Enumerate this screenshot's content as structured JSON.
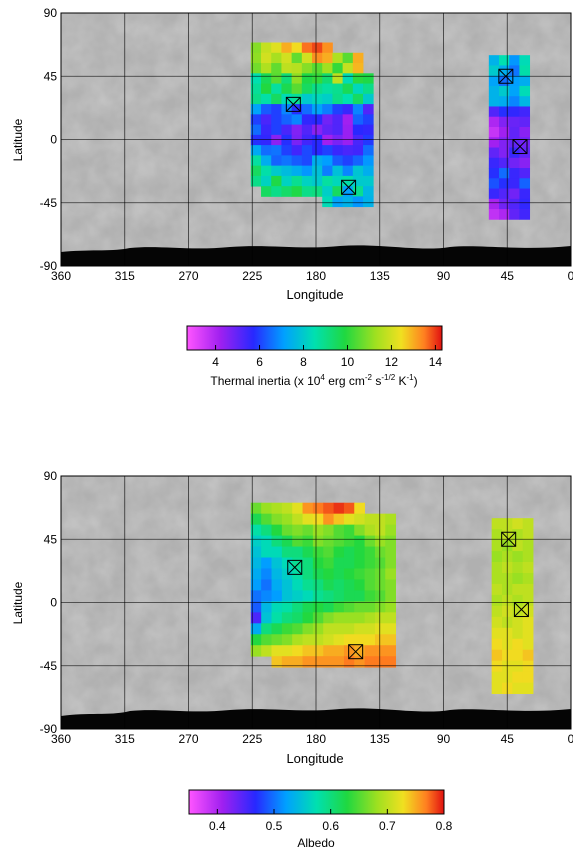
{
  "chart_data": [
    {
      "type": "heatmap",
      "xlabel": "Longitude",
      "ylabel": "Latitude",
      "xlim": [
        360,
        0
      ],
      "ylim": [
        -90,
        90
      ],
      "x_ticks": [
        "360",
        "315",
        "270",
        "225",
        "180",
        "135",
        "90",
        "45",
        "0"
      ],
      "y_ticks": [
        "90",
        "45",
        "0",
        "-45",
        "-90"
      ],
      "grid": true,
      "colorbar": {
        "label_parts": [
          "Thermal inertia (x 10",
          "4",
          " erg cm",
          "-2",
          " s",
          "-1/2",
          " K",
          "-1",
          ")"
        ],
        "range": [
          2.7,
          14.3
        ],
        "ticks": [
          "4",
          "6",
          "8",
          "10",
          "12",
          "14"
        ]
      },
      "regions": [
        {
          "lon_start": 226,
          "lon_step": 7.2,
          "lat_start": 69,
          "lat_step": -7.3,
          "values": [
            [
              11.0,
              11.8,
              12.2,
              13.0,
              12.5,
              13.6,
              13.9,
              13.3,
              null,
              null,
              null,
              null
            ],
            [
              11.1,
              12.0,
              11.4,
              12.0,
              10.6,
              12.0,
              13.3,
              13.0,
              11.5,
              10.5,
              13.0,
              null
            ],
            [
              10.8,
              11.5,
              10.6,
              11.7,
              11.6,
              11.0,
              10.5,
              11.3,
              10.1,
              11.8,
              12.9,
              null
            ],
            [
              8.5,
              9.6,
              10.5,
              9.2,
              11.1,
              9.8,
              10.1,
              9.3,
              11.7,
              8.4,
              10.0,
              9.8
            ],
            [
              8.8,
              9.9,
              8.7,
              9.7,
              10.5,
              9.5,
              9.0,
              8.7,
              8.9,
              9.6,
              8.3,
              9.0
            ],
            [
              9.0,
              8.6,
              9.5,
              8.4,
              8.8,
              8.0,
              8.3,
              8.1,
              9.0,
              8.5,
              9.5,
              8.0
            ],
            [
              7.2,
              6.3,
              6.0,
              6.8,
              5.8,
              6.5,
              7.2,
              6.7,
              6.0,
              5.5,
              6.8,
              5.2
            ],
            [
              6.0,
              5.3,
              6.0,
              6.4,
              6.8,
              5.6,
              5.7,
              4.8,
              5.2,
              4.2,
              6.4,
              6.0
            ],
            [
              6.5,
              5.5,
              6.0,
              5.3,
              4.6,
              5.2,
              4.5,
              5.0,
              5.2,
              4.3,
              5.7,
              5.6
            ],
            [
              5.8,
              5.6,
              4.5,
              5.8,
              4.7,
              5.4,
              5.7,
              4.2,
              4.7,
              4.3,
              5.3,
              5.9
            ],
            [
              7.3,
              6.5,
              6.6,
              6.0,
              5.4,
              6.1,
              5.7,
              6.0,
              5.5,
              5.3,
              5.4,
              6.5
            ],
            [
              8.7,
              7.4,
              6.4,
              6.6,
              6.3,
              6.1,
              7.4,
              7.1,
              6.3,
              6.0,
              6.4,
              7.0
            ],
            [
              9.5,
              8.6,
              8.0,
              7.7,
              7.4,
              7.0,
              7.8,
              6.7,
              7.8,
              6.8,
              7.9,
              7.4
            ],
            [
              9.0,
              8.2,
              9.8,
              8.2,
              8.9,
              8.2,
              8.0,
              8.7,
              8.3,
              8.6,
              8.0,
              8.0
            ],
            [
              null,
              9.5,
              9.0,
              9.4,
              9.8,
              9.0,
              9.1,
              8.1,
              9.5,
              7.1,
              8.9,
              7.6
            ],
            [
              null,
              null,
              null,
              null,
              null,
              null,
              null,
              8.4,
              7.2,
              7.5,
              7.0,
              7.5
            ]
          ]
        },
        {
          "lon_start": 58,
          "lon_step": 7.2,
          "lat_start": 60,
          "lat_step": -7.3,
          "values": [
            [
              7.5,
              8.5,
              7.0,
              8.4
            ],
            [
              8.0,
              7.4,
              6.6,
              8.6
            ],
            [
              7.2,
              6.5,
              7.1,
              7.4
            ],
            [
              7.5,
              8.0,
              7.2,
              8.4
            ],
            [
              7.5,
              7.4,
              6.8,
              7.6
            ],
            [
              5.2,
              5.8,
              5.6,
              5.4
            ],
            [
              4.0,
              4.6,
              4.9,
              5.0
            ],
            [
              3.6,
              4.2,
              5.0,
              4.5
            ],
            [
              4.2,
              4.6,
              5.0,
              4.8
            ],
            [
              5.0,
              4.6,
              5.5,
              5.0
            ],
            [
              5.5,
              5.2,
              4.8,
              4.5
            ],
            [
              5.8,
              6.5,
              5.5,
              5.2
            ],
            [
              6.2,
              5.8,
              5.5,
              6.4
            ],
            [
              5.5,
              5.2,
              4.8,
              5.5
            ],
            [
              4.1,
              4.8,
              5.2,
              5.6
            ],
            [
              3.7,
              4.0,
              5.0,
              5.4
            ]
          ]
        }
      ],
      "markers": [
        {
          "lon": 196,
          "lat": 25
        },
        {
          "lon": 157,
          "lat": -34
        },
        {
          "lon": 46,
          "lat": 45
        },
        {
          "lon": 36,
          "lat": -5
        }
      ]
    },
    {
      "type": "heatmap",
      "xlabel": "Longitude",
      "ylabel": "Latitude",
      "xlim": [
        360,
        0
      ],
      "ylim": [
        -90,
        90
      ],
      "x_ticks": [
        "360",
        "315",
        "270",
        "225",
        "180",
        "135",
        "90",
        "45",
        "0"
      ],
      "y_ticks": [
        "90",
        "45",
        "0",
        "-45",
        "-90"
      ],
      "grid": true,
      "colorbar": {
        "label_parts": [
          "Albedo"
        ],
        "range": [
          0.35,
          0.8
        ],
        "ticks": [
          "0.4",
          "0.5",
          "0.6",
          "0.7",
          "0.8"
        ]
      },
      "regions": [
        {
          "lon_start": 226,
          "lon_step": 7.3,
          "lat_start": 71,
          "lat_step": -7.8,
          "values": [
            [
              0.66,
              0.68,
              0.69,
              0.7,
              0.72,
              0.76,
              0.77,
              0.78,
              0.79,
              0.78,
              0.73,
              null,
              null,
              null
            ],
            [
              0.62,
              0.65,
              0.67,
              0.68,
              0.7,
              0.72,
              0.73,
              0.76,
              0.74,
              0.72,
              0.71,
              0.7,
              0.7,
              0.69
            ],
            [
              0.58,
              0.6,
              0.63,
              0.66,
              0.67,
              0.66,
              0.68,
              0.67,
              0.65,
              0.64,
              0.67,
              0.69,
              0.7,
              0.68
            ],
            [
              0.56,
              0.57,
              0.6,
              0.62,
              0.65,
              0.64,
              0.67,
              0.66,
              0.65,
              0.64,
              0.63,
              0.66,
              0.68,
              0.67
            ],
            [
              0.55,
              0.57,
              0.57,
              0.6,
              0.6,
              0.62,
              0.64,
              0.65,
              0.63,
              0.62,
              0.63,
              0.64,
              0.66,
              0.67
            ],
            [
              0.54,
              0.52,
              0.55,
              0.57,
              0.59,
              0.6,
              0.63,
              0.64,
              0.62,
              0.62,
              0.63,
              0.64,
              0.65,
              0.67
            ],
            [
              0.53,
              0.51,
              0.54,
              0.56,
              0.58,
              0.6,
              0.62,
              0.63,
              0.62,
              0.63,
              0.64,
              0.65,
              0.66,
              0.68
            ],
            [
              0.52,
              0.5,
              0.53,
              0.55,
              0.57,
              0.59,
              0.6,
              0.62,
              0.61,
              0.62,
              0.63,
              0.65,
              0.66,
              0.67
            ],
            [
              0.5,
              0.51,
              0.52,
              0.55,
              0.56,
              0.57,
              0.59,
              0.6,
              0.61,
              0.62,
              0.62,
              0.64,
              0.65,
              0.67
            ],
            [
              0.49,
              0.54,
              0.57,
              0.58,
              0.6,
              0.62,
              0.63,
              0.62,
              0.64,
              0.65,
              0.66,
              0.66,
              0.67,
              0.68
            ],
            [
              0.45,
              0.55,
              0.58,
              0.6,
              0.61,
              0.63,
              0.65,
              0.67,
              0.68,
              0.68,
              0.68,
              0.69,
              0.7,
              0.7
            ],
            [
              0.53,
              0.6,
              0.62,
              0.64,
              0.65,
              0.67,
              0.68,
              0.7,
              0.7,
              0.7,
              0.71,
              0.71,
              0.72,
              0.72
            ],
            [
              0.63,
              0.65,
              0.66,
              0.67,
              0.69,
              0.7,
              0.7,
              0.71,
              0.72,
              0.73,
              0.73,
              0.73,
              0.74,
              0.74
            ],
            [
              0.68,
              0.7,
              0.72,
              0.72,
              0.73,
              0.74,
              0.74,
              0.75,
              0.75,
              0.76,
              0.75,
              0.76,
              0.76,
              0.76
            ],
            [
              null,
              null,
              0.74,
              0.75,
              0.75,
              0.76,
              0.76,
              0.76,
              0.76,
              0.77,
              0.76,
              0.77,
              0.77,
              0.77
            ]
          ]
        },
        {
          "lon_start": 56,
          "lon_step": 7.3,
          "lat_start": 60,
          "lat_step": -7.8,
          "values": [
            [
              0.7,
              0.7,
              0.71,
              0.7
            ],
            [
              0.69,
              0.7,
              0.69,
              0.7
            ],
            [
              0.69,
              0.68,
              0.7,
              0.69
            ],
            [
              0.68,
              0.69,
              0.68,
              0.69
            ],
            [
              0.69,
              0.7,
              0.69,
              0.7
            ],
            [
              0.69,
              0.69,
              0.68,
              0.69
            ],
            [
              0.7,
              0.69,
              0.7,
              0.7
            ],
            [
              0.69,
              0.7,
              0.69,
              0.7
            ],
            [
              0.7,
              0.71,
              0.7,
              0.71
            ],
            [
              0.71,
              0.7,
              0.71,
              0.72
            ],
            [
              0.72,
              0.72,
              0.71,
              0.72
            ],
            [
              0.73,
              0.72,
              0.73,
              0.72
            ],
            [
              0.74,
              0.73,
              0.73,
              0.74
            ],
            [
              0.73,
              0.72,
              0.72,
              0.73
            ],
            [
              0.72,
              0.72,
              0.73,
              0.73
            ],
            [
              0.72,
              0.73,
              0.72,
              0.72
            ]
          ]
        }
      ],
      "markers": [
        {
          "lon": 195,
          "lat": 25
        },
        {
          "lon": 152,
          "lat": -35
        },
        {
          "lon": 44,
          "lat": 45
        },
        {
          "lon": 35,
          "lat": -5
        }
      ]
    }
  ]
}
